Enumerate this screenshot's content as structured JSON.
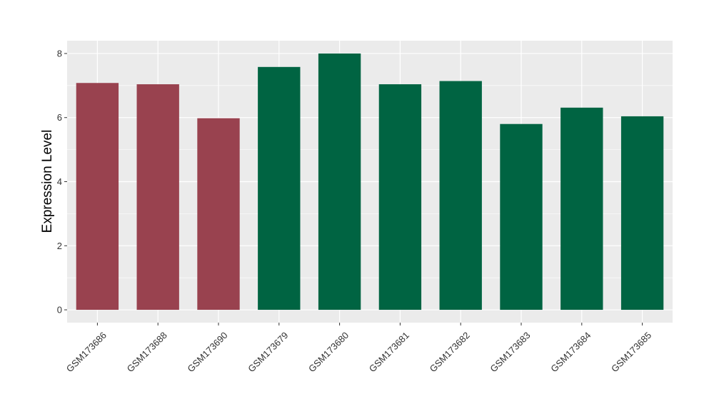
{
  "chart_data": {
    "type": "bar",
    "title": "",
    "xlabel": "",
    "ylabel": "Expression Level",
    "ylim": [
      -0.4,
      8.4
    ],
    "yticks": [
      0,
      2,
      4,
      6,
      8
    ],
    "grid": true,
    "legend": "none",
    "categories": [
      "GSM173686",
      "GSM173688",
      "GSM173690",
      "GSM173679",
      "GSM173680",
      "GSM173681",
      "GSM173682",
      "GSM173683",
      "GSM173684",
      "GSM173685"
    ],
    "values": [
      7.08,
      7.04,
      5.98,
      7.58,
      8.0,
      7.04,
      7.14,
      5.8,
      6.31,
      6.04
    ],
    "bar_colors": [
      "#99424f",
      "#99424f",
      "#99424f",
      "#006442",
      "#006442",
      "#006442",
      "#006442",
      "#006442",
      "#006442",
      "#006442"
    ],
    "panel_background": "#ebebeb",
    "grid_color": "#ffffff"
  }
}
